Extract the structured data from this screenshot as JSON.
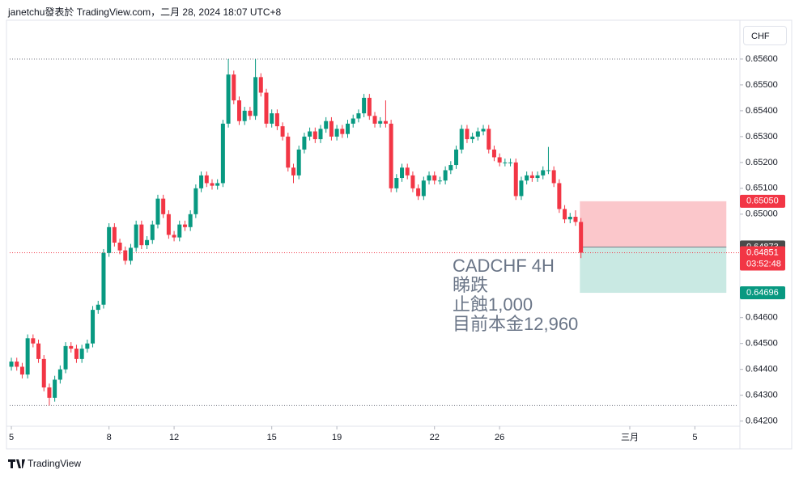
{
  "header": "janetchu發表於 TradingView.com，二月 28, 2024 18:07 UTC+8",
  "currency_button": "CHF",
  "footer": "TradingView",
  "chart_data": {
    "type": "candlestick",
    "symbol_annotation": [
      "CADCHF 4H",
      "睇跌",
      "止蝕1,000",
      "目前本金12,960"
    ],
    "up_color": "#089981",
    "down_color": "#f23645",
    "xlim": [
      -0.9,
      134
    ],
    "ylim": [
      0.6418,
      0.6575
    ],
    "xticks": [
      {
        "value": 0,
        "label": "5"
      },
      {
        "value": 18,
        "label": "8"
      },
      {
        "value": 30,
        "label": "12"
      },
      {
        "value": 48,
        "label": "15"
      },
      {
        "value": 60,
        "label": "19"
      },
      {
        "value": 78,
        "label": "22"
      },
      {
        "value": 90,
        "label": "26"
      },
      {
        "value": 114,
        "label": "三月"
      },
      {
        "value": 126,
        "label": "5"
      }
    ],
    "yticks": [
      {
        "value": 0.656,
        "label": "0.65600"
      },
      {
        "value": 0.655,
        "label": "0.65500"
      },
      {
        "value": 0.654,
        "label": "0.65400"
      },
      {
        "value": 0.653,
        "label": "0.65300"
      },
      {
        "value": 0.652,
        "label": "0.65200"
      },
      {
        "value": 0.651,
        "label": "0.65100"
      },
      {
        "value": 0.65,
        "label": "0.65000"
      },
      {
        "value": 0.646,
        "label": "0.64600"
      },
      {
        "value": 0.645,
        "label": "0.64500"
      },
      {
        "value": 0.644,
        "label": "0.64400"
      },
      {
        "value": 0.643,
        "label": "0.64300"
      },
      {
        "value": 0.642,
        "label": "0.64200"
      }
    ],
    "range_lines": [
      0.656,
      0.6426
    ],
    "ohlc": [
      [
        0.6441,
        0.64445,
        0.64395,
        0.6443
      ],
      [
        0.6443,
        0.64445,
        0.64395,
        0.6441
      ],
      [
        0.6441,
        0.64425,
        0.64365,
        0.6438
      ],
      [
        0.6438,
        0.64535,
        0.64365,
        0.6452
      ],
      [
        0.6452,
        0.64535,
        0.64485,
        0.645
      ],
      [
        0.645,
        0.64515,
        0.64425,
        0.6444
      ],
      [
        0.6444,
        0.64455,
        0.64315,
        0.6433
      ],
      [
        0.6433,
        0.64345,
        0.6426,
        0.6429
      ],
      [
        0.6429,
        0.64375,
        0.64275,
        0.6436
      ],
      [
        0.6436,
        0.64415,
        0.64345,
        0.644
      ],
      [
        0.644,
        0.64505,
        0.64385,
        0.6449
      ],
      [
        0.6449,
        0.64505,
        0.64465,
        0.6448
      ],
      [
        0.6448,
        0.64495,
        0.64425,
        0.6444
      ],
      [
        0.6444,
        0.64495,
        0.64425,
        0.6448
      ],
      [
        0.6448,
        0.64515,
        0.64465,
        0.645
      ],
      [
        0.645,
        0.64645,
        0.64485,
        0.6463
      ],
      [
        0.6463,
        0.64665,
        0.64615,
        0.6465
      ],
      [
        0.6465,
        0.64865,
        0.64635,
        0.6485
      ],
      [
        0.6485,
        0.64965,
        0.64835,
        0.6495
      ],
      [
        0.6495,
        0.64965,
        0.64875,
        0.6489
      ],
      [
        0.6489,
        0.64905,
        0.64845,
        0.6486
      ],
      [
        0.6486,
        0.64875,
        0.64805,
        0.6482
      ],
      [
        0.6482,
        0.64885,
        0.64805,
        0.6487
      ],
      [
        0.6487,
        0.64975,
        0.64855,
        0.6496
      ],
      [
        0.6496,
        0.64975,
        0.64865,
        0.6488
      ],
      [
        0.6488,
        0.64915,
        0.64865,
        0.649
      ],
      [
        0.649,
        0.64975,
        0.64885,
        0.6496
      ],
      [
        0.6496,
        0.65075,
        0.64945,
        0.6506
      ],
      [
        0.6506,
        0.65075,
        0.64985,
        0.65
      ],
      [
        0.65,
        0.65015,
        0.64905,
        0.6492
      ],
      [
        0.6492,
        0.64935,
        0.64895,
        0.6491
      ],
      [
        0.6491,
        0.64975,
        0.64895,
        0.6496
      ],
      [
        0.6496,
        0.64975,
        0.64935,
        0.6495
      ],
      [
        0.6495,
        0.65015,
        0.64935,
        0.65
      ],
      [
        0.65,
        0.65115,
        0.64985,
        0.651
      ],
      [
        0.651,
        0.65165,
        0.65085,
        0.6515
      ],
      [
        0.6515,
        0.65165,
        0.65105,
        0.6512
      ],
      [
        0.6512,
        0.65135,
        0.65095,
        0.6511
      ],
      [
        0.6511,
        0.65135,
        0.65095,
        0.6512
      ],
      [
        0.6512,
        0.65365,
        0.65105,
        0.6535
      ],
      [
        0.6535,
        0.656,
        0.65335,
        0.6554
      ],
      [
        0.6554,
        0.65555,
        0.65425,
        0.6544
      ],
      [
        0.6544,
        0.65455,
        0.65345,
        0.6536
      ],
      [
        0.6536,
        0.65415,
        0.65345,
        0.654
      ],
      [
        0.654,
        0.65415,
        0.65365,
        0.6538
      ],
      [
        0.6538,
        0.656,
        0.65365,
        0.6553
      ],
      [
        0.6553,
        0.65545,
        0.65455,
        0.6547
      ],
      [
        0.6547,
        0.65485,
        0.65335,
        0.6535
      ],
      [
        0.6535,
        0.65405,
        0.65335,
        0.6539
      ],
      [
        0.6539,
        0.65405,
        0.65325,
        0.6534
      ],
      [
        0.6534,
        0.65355,
        0.65285,
        0.653
      ],
      [
        0.653,
        0.65315,
        0.65165,
        0.6518
      ],
      [
        0.6518,
        0.65195,
        0.6512,
        0.6515
      ],
      [
        0.6515,
        0.65265,
        0.65135,
        0.6525
      ],
      [
        0.6525,
        0.65315,
        0.65235,
        0.653
      ],
      [
        0.653,
        0.65335,
        0.65285,
        0.6532
      ],
      [
        0.6532,
        0.65335,
        0.65275,
        0.6529
      ],
      [
        0.6529,
        0.65345,
        0.65275,
        0.6533
      ],
      [
        0.6533,
        0.65375,
        0.65315,
        0.6536
      ],
      [
        0.6536,
        0.65375,
        0.65285,
        0.653
      ],
      [
        0.653,
        0.65345,
        0.65285,
        0.6533
      ],
      [
        0.6533,
        0.65345,
        0.65295,
        0.6531
      ],
      [
        0.6531,
        0.65365,
        0.65295,
        0.6535
      ],
      [
        0.6535,
        0.65385,
        0.65335,
        0.6537
      ],
      [
        0.6537,
        0.65405,
        0.65355,
        0.6539
      ],
      [
        0.6539,
        0.65465,
        0.65375,
        0.6545
      ],
      [
        0.6545,
        0.65465,
        0.65365,
        0.6538
      ],
      [
        0.6538,
        0.65395,
        0.65335,
        0.6535
      ],
      [
        0.6535,
        0.65375,
        0.65335,
        0.6536
      ],
      [
        0.6536,
        0.6544,
        0.65335,
        0.6535
      ],
      [
        0.6535,
        0.65365,
        0.65085,
        0.651
      ],
      [
        0.651,
        0.65155,
        0.65085,
        0.6514
      ],
      [
        0.6514,
        0.65195,
        0.65125,
        0.6518
      ],
      [
        0.6518,
        0.65195,
        0.65135,
        0.6515
      ],
      [
        0.6515,
        0.65165,
        0.65085,
        0.651
      ],
      [
        0.651,
        0.65115,
        0.65055,
        0.6507
      ],
      [
        0.6507,
        0.65145,
        0.65055,
        0.6513
      ],
      [
        0.6513,
        0.65165,
        0.65115,
        0.6515
      ],
      [
        0.6515,
        0.65165,
        0.65115,
        0.6513
      ],
      [
        0.6513,
        0.65145,
        0.65115,
        0.6513
      ],
      [
        0.6513,
        0.65185,
        0.65115,
        0.6517
      ],
      [
        0.6517,
        0.65205,
        0.65155,
        0.6519
      ],
      [
        0.6519,
        0.65265,
        0.65175,
        0.6525
      ],
      [
        0.6525,
        0.65345,
        0.65235,
        0.6533
      ],
      [
        0.6533,
        0.65345,
        0.65275,
        0.6529
      ],
      [
        0.6529,
        0.65315,
        0.65275,
        0.653
      ],
      [
        0.653,
        0.65335,
        0.65285,
        0.6532
      ],
      [
        0.6532,
        0.65345,
        0.65305,
        0.6533
      ],
      [
        0.6533,
        0.65345,
        0.65235,
        0.6525
      ],
      [
        0.6525,
        0.65265,
        0.65205,
        0.6522
      ],
      [
        0.6522,
        0.65235,
        0.65185,
        0.652
      ],
      [
        0.652,
        0.65215,
        0.65185,
        0.652
      ],
      [
        0.652,
        0.65215,
        0.65185,
        0.652
      ],
      [
        0.652,
        0.65215,
        0.65055,
        0.6507
      ],
      [
        0.6507,
        0.65145,
        0.65055,
        0.6513
      ],
      [
        0.6513,
        0.65165,
        0.65115,
        0.6515
      ],
      [
        0.6515,
        0.65165,
        0.65125,
        0.6514
      ],
      [
        0.6514,
        0.65165,
        0.65125,
        0.6515
      ],
      [
        0.6515,
        0.65185,
        0.65135,
        0.6517
      ],
      [
        0.6517,
        0.6526,
        0.65155,
        0.6517
      ],
      [
        0.6517,
        0.65185,
        0.65105,
        0.6512
      ],
      [
        0.6512,
        0.65135,
        0.65005,
        0.6502
      ],
      [
        0.6502,
        0.65035,
        0.64965,
        0.6498
      ],
      [
        0.6498,
        0.65005,
        0.64965,
        0.6499
      ],
      [
        0.6499,
        0.65015,
        0.64955,
        0.6497
      ],
      [
        0.6497,
        0.64985,
        0.6483,
        0.64851
      ]
    ],
    "position": {
      "x": [
        104.8,
        131.8
      ],
      "stop": {
        "value": 0.6505,
        "label": "0.65050"
      },
      "entry": {
        "value": 0.64873,
        "label": "0.64873"
      },
      "target": {
        "value": 0.64696,
        "label": "0.64696"
      }
    },
    "last_price": {
      "value": 0.64851,
      "label": "0.64851"
    },
    "countdown": "03:52:48"
  }
}
